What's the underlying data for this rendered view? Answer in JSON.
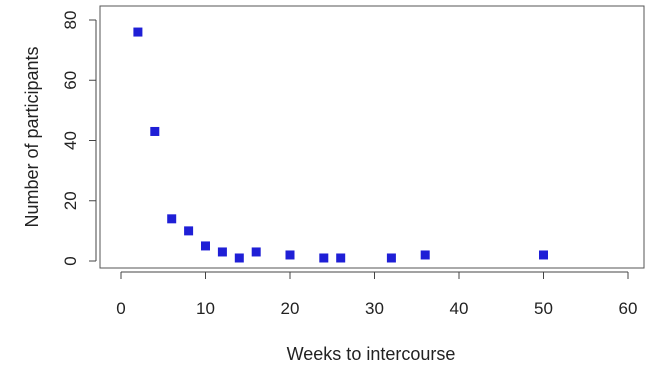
{
  "chart_data": {
    "type": "scatter",
    "title": "",
    "xlabel": "Weeks to intercourse",
    "ylabel": "Number of participants",
    "xlim": [
      0,
      60
    ],
    "ylim": [
      0,
      80
    ],
    "x_ticks": [
      0,
      10,
      20,
      30,
      40,
      50,
      60
    ],
    "y_ticks": [
      0,
      20,
      40,
      60,
      80
    ],
    "grid": false,
    "marker": "square",
    "color": "#1f1fd6",
    "points": [
      {
        "x": 2,
        "y": 76
      },
      {
        "x": 4,
        "y": 43
      },
      {
        "x": 6,
        "y": 14
      },
      {
        "x": 8,
        "y": 10
      },
      {
        "x": 10,
        "y": 5
      },
      {
        "x": 12,
        "y": 3
      },
      {
        "x": 14,
        "y": 1
      },
      {
        "x": 16,
        "y": 3
      },
      {
        "x": 20,
        "y": 2
      },
      {
        "x": 24,
        "y": 1
      },
      {
        "x": 26,
        "y": 1
      },
      {
        "x": 32,
        "y": 1
      },
      {
        "x": 36,
        "y": 2
      },
      {
        "x": 50,
        "y": 2
      }
    ]
  }
}
